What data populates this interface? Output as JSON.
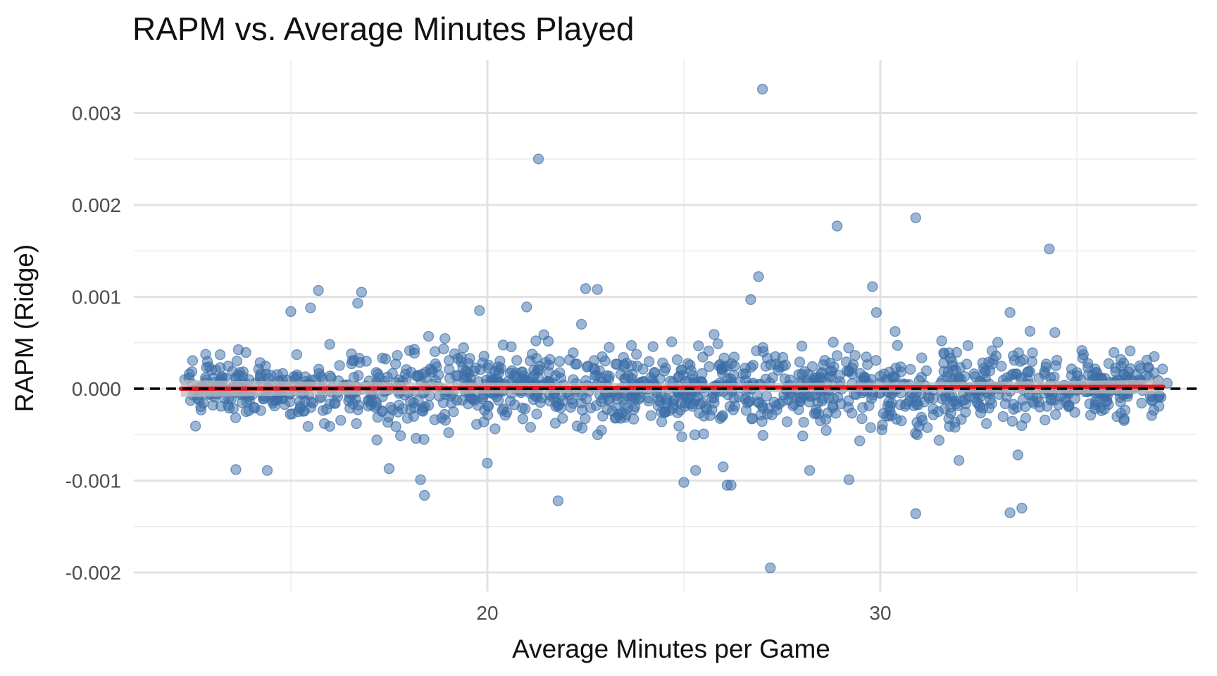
{
  "chart_data": {
    "type": "scatter",
    "title": "RAPM vs. Average Minutes Played",
    "xlabel": "Average Minutes per Game",
    "ylabel": "RAPM (Ridge)",
    "xlim": [
      10.9,
      38.0
    ],
    "ylim": [
      -0.0022,
      0.0035
    ],
    "x_ticks": [
      20,
      30
    ],
    "x_tick_labels": [
      "20",
      "30"
    ],
    "x_minor_ticks": [
      15,
      25,
      35
    ],
    "y_ticks": [
      -0.002,
      -0.001,
      0.0,
      0.001,
      0.002,
      0.003
    ],
    "y_tick_labels": [
      "-0.002",
      "-0.001",
      "0.000",
      "0.001",
      "0.002",
      "0.003"
    ],
    "y_minor_ticks": [
      -0.0015,
      -0.0005,
      0.0005,
      0.0015,
      0.0025
    ],
    "grid": true,
    "reference_line": {
      "y": 0.0,
      "style": "dashed",
      "color": "#000000"
    },
    "trend_line": {
      "x": [
        12.2,
        37.2
      ],
      "y": [
        0.0,
        2e-05
      ],
      "color": "#e8161b",
      "band_color": "#bdbdbd"
    },
    "point_color": "#3b6ea8",
    "outliers": [
      {
        "x": 27.0,
        "y": 0.00326
      },
      {
        "x": 21.3,
        "y": 0.0025
      },
      {
        "x": 30.9,
        "y": 0.00186
      },
      {
        "x": 28.9,
        "y": 0.00177
      },
      {
        "x": 34.3,
        "y": 0.00152
      },
      {
        "x": 26.9,
        "y": 0.00122
      },
      {
        "x": 29.8,
        "y": 0.00111
      },
      {
        "x": 22.5,
        "y": 0.00109
      },
      {
        "x": 22.8,
        "y": 0.00108
      },
      {
        "x": 15.7,
        "y": 0.00107
      },
      {
        "x": 16.8,
        "y": 0.00105
      },
      {
        "x": 16.7,
        "y": 0.00093
      },
      {
        "x": 26.7,
        "y": 0.00097
      },
      {
        "x": 21.0,
        "y": 0.00089
      },
      {
        "x": 19.8,
        "y": 0.00085
      },
      {
        "x": 15.5,
        "y": 0.00088
      },
      {
        "x": 15.0,
        "y": 0.00084
      },
      {
        "x": 33.3,
        "y": 0.00083
      },
      {
        "x": 29.9,
        "y": 0.00083
      },
      {
        "x": 13.6,
        "y": -0.00088
      },
      {
        "x": 14.4,
        "y": -0.00089
      },
      {
        "x": 18.3,
        "y": -0.00099
      },
      {
        "x": 18.4,
        "y": -0.00116
      },
      {
        "x": 21.8,
        "y": -0.00122
      },
      {
        "x": 25.0,
        "y": -0.00102
      },
      {
        "x": 26.1,
        "y": -0.00105
      },
      {
        "x": 26.2,
        "y": -0.00105
      },
      {
        "x": 27.2,
        "y": -0.00195
      },
      {
        "x": 29.2,
        "y": -0.00099
      },
      {
        "x": 30.9,
        "y": -0.00136
      },
      {
        "x": 33.3,
        "y": -0.00135
      },
      {
        "x": 33.6,
        "y": -0.0013
      },
      {
        "x": 17.5,
        "y": -0.00087
      },
      {
        "x": 20.0,
        "y": -0.00081
      },
      {
        "x": 25.3,
        "y": -0.00089
      },
      {
        "x": 26.0,
        "y": -0.00085
      },
      {
        "x": 28.2,
        "y": -0.00089
      },
      {
        "x": 32.0,
        "y": -0.00078
      },
      {
        "x": 33.5,
        "y": -0.00072
      },
      {
        "x": 12.3,
        "y": 0.0001
      },
      {
        "x": 13.2,
        "y": 0.00037
      },
      {
        "x": 37.3,
        "y": 6e-05
      },
      {
        "x": 36.6,
        "y": 0.00025
      }
    ],
    "cloud": {
      "x_range": [
        12.4,
        37.2
      ],
      "approx_count": 1400,
      "y_spread_sd": 0.00021
    }
  }
}
